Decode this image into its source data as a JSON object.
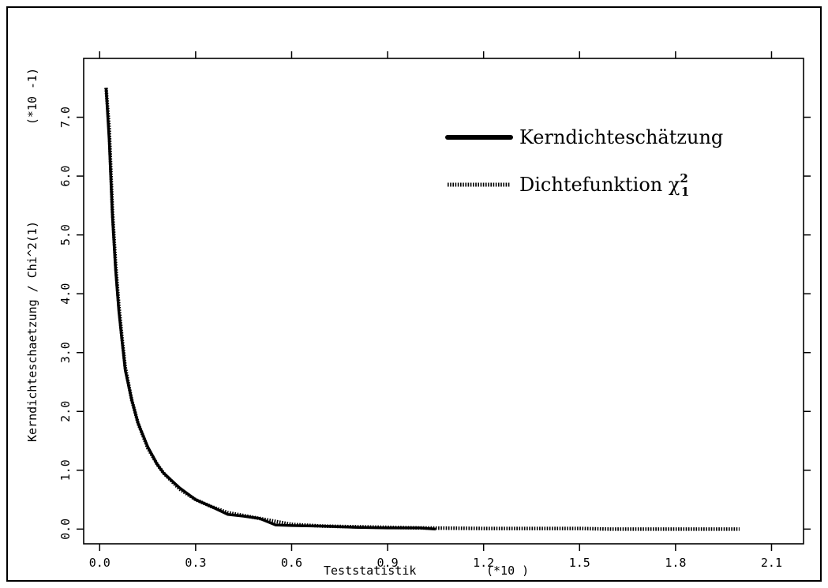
{
  "chart_data": {
    "type": "line",
    "title": "",
    "xlabel": "Teststatistik",
    "xscale_note": "(*10 )",
    "ylabel": "Kerndichteschaetzung / Chi^2(1)",
    "yscale_note": "(*10 -1)",
    "xlim": [
      -0.05,
      2.2
    ],
    "ylim": [
      -0.25,
      8.0
    ],
    "x_ticks": [
      0.0,
      0.3,
      0.6,
      0.9,
      1.2,
      1.5,
      1.8,
      2.1
    ],
    "x_tick_labels": [
      "0.0",
      "0.3",
      "0.6",
      "0.9",
      "1.2",
      "1.5",
      "1.8",
      "2.1"
    ],
    "y_ticks": [
      0.0,
      1.0,
      2.0,
      3.0,
      4.0,
      5.0,
      6.0,
      7.0
    ],
    "y_tick_labels": [
      "0.0",
      "1.0",
      "2.0",
      "3.0",
      "4.0",
      "5.0",
      "6.0",
      "7.0"
    ],
    "grid": false,
    "legend_position": "top-right",
    "legend": [
      {
        "label": "Kerndichteschätzung",
        "style": "solid"
      },
      {
        "label": "Dichtefunktion χ",
        "sub": "1",
        "sup": "2",
        "style": "dotted"
      }
    ],
    "series": [
      {
        "name": "Kerndichteschätzung",
        "style": "solid",
        "color": "#000000",
        "x": [
          0.02,
          0.03,
          0.04,
          0.05,
          0.06,
          0.07,
          0.08,
          0.1,
          0.12,
          0.15,
          0.18,
          0.2,
          0.25,
          0.3,
          0.35,
          0.4,
          0.45,
          0.5,
          0.55,
          0.6,
          0.7,
          0.8,
          0.9,
          1.0,
          1.05
        ],
        "y": [
          7.5,
          6.6,
          5.3,
          4.4,
          3.7,
          3.2,
          2.7,
          2.2,
          1.8,
          1.4,
          1.1,
          0.95,
          0.7,
          0.5,
          0.38,
          0.25,
          0.22,
          0.18,
          0.07,
          0.06,
          0.05,
          0.03,
          0.02,
          0.02,
          0.0
        ]
      },
      {
        "name": "Dichtefunktion χ²₁",
        "style": "dotted",
        "color": "#000000",
        "x": [
          0.02,
          0.03,
          0.04,
          0.05,
          0.06,
          0.07,
          0.08,
          0.1,
          0.12,
          0.15,
          0.18,
          0.2,
          0.25,
          0.3,
          0.35,
          0.4,
          0.5,
          0.6,
          0.7,
          0.8,
          0.9,
          1.0,
          1.2,
          1.4,
          1.5,
          1.6,
          1.8,
          2.0
        ],
        "y": [
          7.5,
          6.8,
          5.4,
          4.5,
          3.8,
          3.25,
          2.75,
          2.2,
          1.8,
          1.38,
          1.1,
          0.95,
          0.68,
          0.5,
          0.38,
          0.28,
          0.18,
          0.08,
          0.05,
          0.04,
          0.03,
          0.02,
          0.01,
          0.01,
          0.01,
          0.0,
          0.0,
          0.0
        ]
      }
    ]
  }
}
